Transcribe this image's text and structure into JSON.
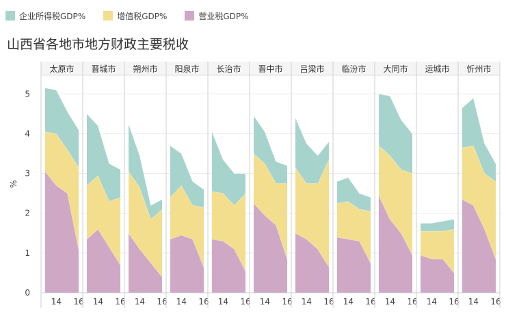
{
  "legend": {
    "items": [
      {
        "label": "企业所得税GDP%",
        "color": "#a7d3cd"
      },
      {
        "label": "增值税GDP%",
        "color": "#f2de8d"
      },
      {
        "label": "营业税GDP%",
        "color": "#cfa8c6"
      }
    ]
  },
  "chart_data": {
    "type": "area",
    "title": "山西省各地市地方财政主要税收",
    "ylabel": "%",
    "ylim": [
      0,
      5.4
    ],
    "yticks": [
      0,
      1,
      2,
      3,
      4,
      5
    ],
    "x": [
      2013,
      2014,
      2015,
      2016
    ],
    "x_tick_labels": [
      {
        "x": 2014,
        "label": "14"
      },
      {
        "x": 2016,
        "label": "16"
      }
    ],
    "stacked": true,
    "series_names": [
      "企业所得税GDP%",
      "增值税GDP%",
      "营业税GDP%"
    ],
    "colors": {
      "企业所得税GDP%": "#a7d3cd",
      "增值税GDP%": "#f2de8d",
      "营业税GDP%": "#cfa8c6"
    },
    "panels": [
      {
        "city": "太原市",
        "营业税GDP%": [
          3.05,
          2.7,
          2.5,
          1.1
        ],
        "增值税GDP%": [
          1.0,
          1.3,
          1.1,
          2.05
        ],
        "企业所得税GDP%": [
          1.1,
          1.1,
          0.95,
          0.95
        ]
      },
      {
        "city": "晋城市",
        "营业税GDP%": [
          1.35,
          1.6,
          1.15,
          0.7
        ],
        "增值税GDP%": [
          1.35,
          1.35,
          1.15,
          1.7
        ],
        "企业所得税GDP%": [
          1.8,
          1.25,
          0.95,
          0.7
        ]
      },
      {
        "city": "朔州市",
        "营业税GDP%": [
          1.5,
          1.1,
          0.75,
          0.4
        ],
        "增值税GDP%": [
          1.55,
          1.55,
          1.1,
          1.7
        ],
        "企业所得税GDP%": [
          1.2,
          0.8,
          0.35,
          0.25
        ]
      },
      {
        "city": "阳泉市",
        "营业税GDP%": [
          1.35,
          1.45,
          1.35,
          0.65
        ],
        "增值税GDP%": [
          1.05,
          1.25,
          0.85,
          1.5
        ],
        "企业所得税GDP%": [
          1.3,
          0.8,
          0.6,
          0.45
        ]
      },
      {
        "city": "长治市",
        "营业税GDP%": [
          1.35,
          1.3,
          1.1,
          0.55
        ],
        "增值税GDP%": [
          1.2,
          1.2,
          1.1,
          1.95
        ],
        "企业所得税GDP%": [
          1.5,
          0.85,
          0.8,
          0.5
        ]
      },
      {
        "city": "晋中市",
        "营业税GDP%": [
          2.25,
          1.95,
          1.7,
          0.85
        ],
        "增值税GDP%": [
          1.25,
          1.3,
          1.05,
          1.9
        ],
        "企业所得税GDP%": [
          0.95,
          0.8,
          0.55,
          0.45
        ]
      },
      {
        "city": "吕梁市",
        "营业税GDP%": [
          1.5,
          1.35,
          1.1,
          0.65
        ],
        "增值税GDP%": [
          1.65,
          1.4,
          1.65,
          2.7
        ],
        "企业所得税GDP%": [
          1.25,
          1.0,
          0.7,
          0.45
        ]
      },
      {
        "city": "临汾市",
        "营业税GDP%": [
          1.4,
          1.35,
          1.3,
          0.75
        ],
        "增值税GDP%": [
          0.85,
          0.95,
          0.8,
          1.3
        ],
        "企业所得税GDP%": [
          0.55,
          0.6,
          0.4,
          0.35
        ]
      },
      {
        "city": "大同市",
        "营业税GDP%": [
          2.45,
          1.85,
          1.5,
          0.95
        ],
        "增值税GDP%": [
          1.25,
          1.6,
          1.6,
          2.05
        ],
        "企业所得税GDP%": [
          1.3,
          1.5,
          1.25,
          1.0
        ]
      },
      {
        "city": "运城市",
        "营业税GDP%": [
          0.95,
          0.85,
          0.85,
          0.5
        ],
        "增值税GDP%": [
          0.6,
          0.7,
          0.7,
          1.1
        ],
        "企业所得税GDP%": [
          0.2,
          0.2,
          0.25,
          0.25
        ]
      },
      {
        "city": "忻州市",
        "营业税GDP%": [
          2.35,
          2.2,
          1.6,
          0.85
        ],
        "增值税GDP%": [
          1.3,
          1.5,
          1.4,
          1.95
        ],
        "企业所得税GDP%": [
          1.0,
          1.2,
          0.75,
          0.45
        ]
      }
    ]
  }
}
